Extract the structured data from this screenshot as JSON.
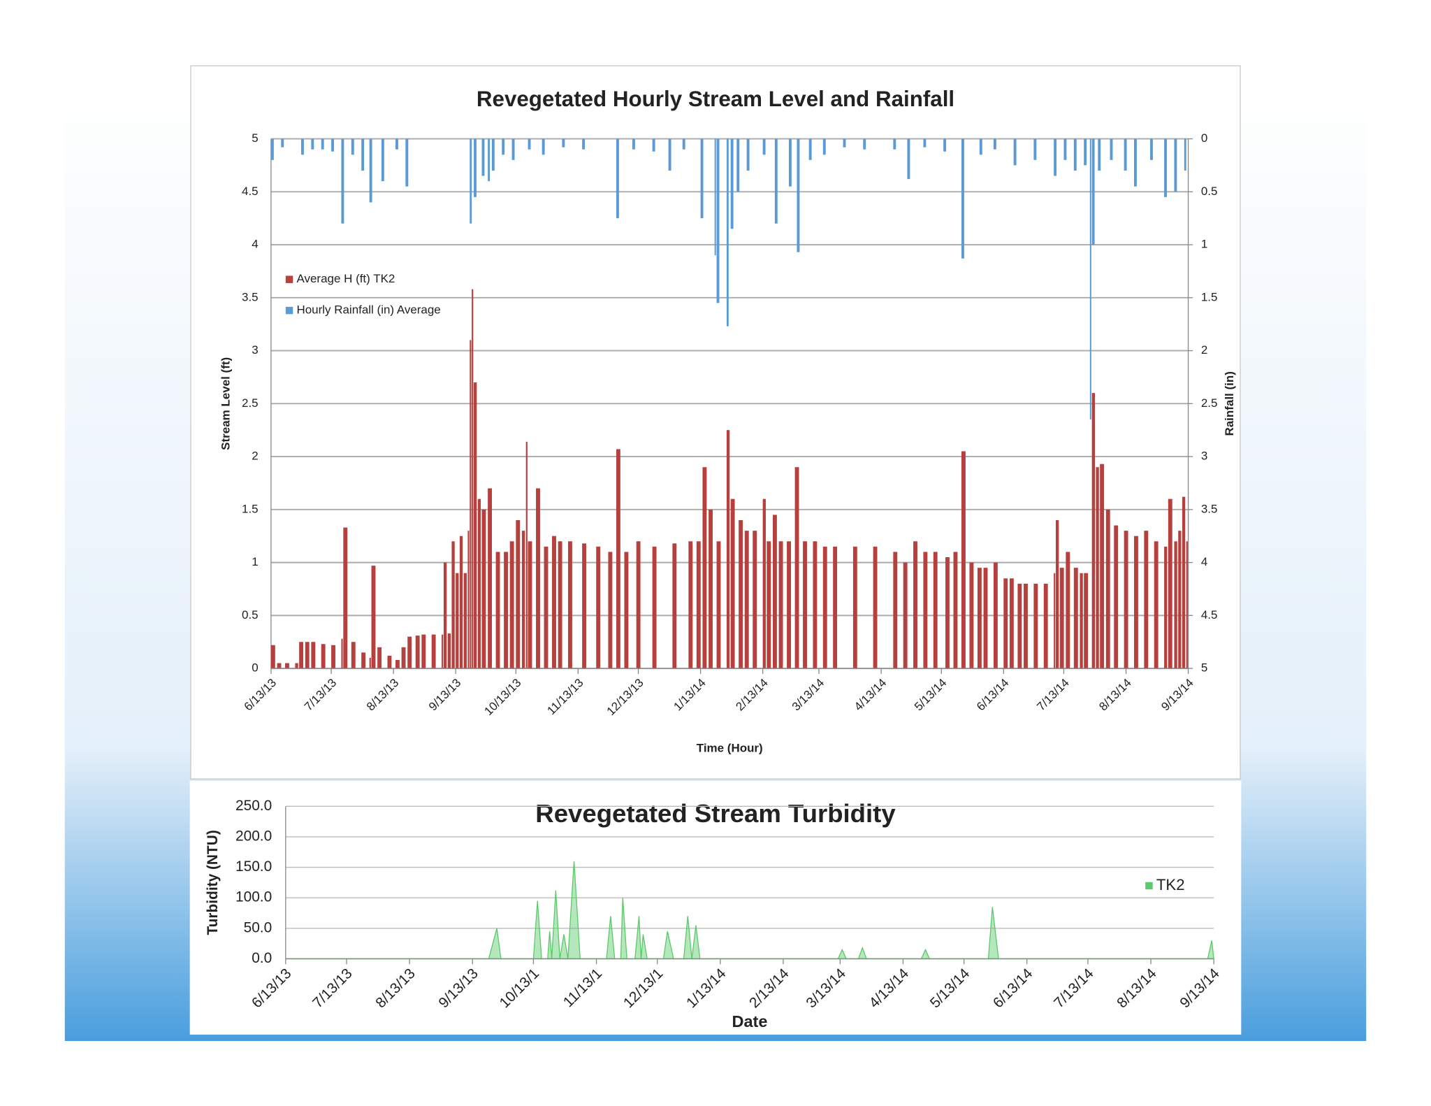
{
  "chart_data": [
    {
      "type": "bar",
      "title": "Revegetated Hourly Stream Level and Rainfall",
      "y_label": "Stream Level (ft)",
      "y2_label": "Rainfall (in)",
      "x_label": "Time (Hour)",
      "xlim": [
        0,
        457
      ],
      "xticks": [
        {
          "value": 0,
          "label": "6/13/13"
        },
        {
          "value": 30,
          "label": "7/13/13"
        },
        {
          "value": 61,
          "label": "8/13/13"
        },
        {
          "value": 92,
          "label": "9/13/13"
        },
        {
          "value": 122,
          "label": "10/13/13"
        },
        {
          "value": 153,
          "label": "11/13/13"
        },
        {
          "value": 183,
          "label": "12/13/13"
        },
        {
          "value": 214,
          "label": "1/13/14"
        },
        {
          "value": 245,
          "label": "2/13/14"
        },
        {
          "value": 273,
          "label": "3/13/14"
        },
        {
          "value": 304,
          "label": "4/13/14"
        },
        {
          "value": 334,
          "label": "5/13/14"
        },
        {
          "value": 365,
          "label": "6/13/14"
        },
        {
          "value": 395,
          "label": "7/13/14"
        },
        {
          "value": 426,
          "label": "8/13/14"
        },
        {
          "value": 457,
          "label": "9/13/14"
        }
      ],
      "ylim": [
        0,
        5
      ],
      "yticks": [
        0,
        0.5,
        1,
        1.5,
        2,
        2.5,
        3,
        3.5,
        4,
        4.5,
        5
      ],
      "y2lim": [
        5,
        0
      ],
      "y2ticks": [
        0,
        0.5,
        1,
        1.5,
        2,
        2.5,
        3,
        3.5,
        4,
        4.5,
        5
      ],
      "grid": true,
      "legend": "upper left",
      "series": [
        {
          "name": "Average H (ft) TK2",
          "color": "#b5403d",
          "x": [
            0,
            3,
            7,
            12,
            14,
            17,
            20,
            25,
            30,
            35,
            36,
            40,
            45,
            49,
            50,
            53,
            58,
            62,
            65,
            68,
            72,
            75,
            80,
            85,
            86,
            88,
            90,
            92,
            94,
            96,
            98,
            99,
            100,
            101,
            103,
            105,
            108,
            112,
            116,
            119,
            122,
            125,
            127,
            128,
            132,
            136,
            140,
            143,
            148,
            155,
            162,
            168,
            172,
            176,
            182,
            190,
            200,
            208,
            212,
            215,
            218,
            222,
            227,
            229,
            233,
            236,
            240,
            245,
            247,
            250,
            253,
            257,
            261,
            265,
            270,
            275,
            280,
            290,
            300,
            310,
            315,
            320,
            325,
            330,
            336,
            340,
            344,
            348,
            352,
            355,
            360,
            365,
            368,
            372,
            375,
            380,
            385,
            390,
            391,
            393,
            396,
            400,
            403,
            405,
            409,
            411,
            413,
            416,
            420,
            425,
            430,
            435,
            440,
            445,
            447,
            450,
            452,
            454,
            456
          ],
          "values": [
            0.22,
            0.05,
            0.05,
            0.05,
            0.25,
            0.25,
            0.25,
            0.23,
            0.22,
            0.28,
            1.33,
            0.25,
            0.15,
            0.1,
            0.97,
            0.2,
            0.12,
            0.08,
            0.2,
            0.3,
            0.31,
            0.32,
            0.32,
            0.32,
            1.0,
            0.33,
            1.2,
            0.9,
            1.25,
            0.9,
            1.3,
            3.1,
            3.58,
            2.7,
            1.6,
            1.5,
            1.7,
            1.1,
            1.1,
            1.2,
            1.4,
            1.3,
            2.14,
            1.2,
            1.7,
            1.15,
            1.25,
            1.2,
            1.2,
            1.18,
            1.15,
            1.1,
            2.07,
            1.1,
            1.2,
            1.15,
            1.18,
            1.2,
            1.2,
            1.9,
            1.5,
            1.2,
            2.25,
            1.6,
            1.4,
            1.3,
            1.3,
            1.6,
            1.2,
            1.45,
            1.2,
            1.2,
            1.9,
            1.2,
            1.2,
            1.15,
            1.15,
            1.15,
            1.15,
            1.1,
            1.0,
            1.2,
            1.1,
            1.1,
            1.05,
            1.1,
            2.05,
            1.0,
            0.95,
            0.95,
            1.0,
            0.85,
            0.85,
            0.8,
            0.8,
            0.8,
            0.8,
            0.9,
            1.4,
            0.95,
            1.1,
            0.95,
            0.9,
            0.9,
            2.6,
            1.9,
            1.93,
            1.5,
            1.35,
            1.3,
            1.25,
            1.3,
            1.2,
            1.15,
            1.6,
            1.2,
            1.3,
            1.62,
            1.2
          ]
        },
        {
          "name": "Hourly Rainfall (in) Average",
          "color": "#5b9bd5",
          "axis": "y2",
          "x": [
            0,
            5,
            15,
            20,
            25,
            30,
            35,
            40,
            45,
            49,
            55,
            62,
            67,
            99,
            101,
            105,
            108,
            110,
            115,
            120,
            128,
            135,
            145,
            155,
            172,
            180,
            190,
            198,
            205,
            214,
            221,
            222,
            227,
            229,
            232,
            237,
            245,
            251,
            258,
            262,
            268,
            275,
            285,
            295,
            310,
            317,
            325,
            335,
            344,
            353,
            360,
            370,
            380,
            390,
            395,
            400,
            405,
            408,
            409,
            412,
            418,
            425,
            430,
            438,
            445,
            450,
            455
          ],
          "values": [
            0.2,
            0.08,
            0.15,
            0.1,
            0.1,
            0.12,
            0.8,
            0.15,
            0.3,
            0.6,
            0.4,
            0.1,
            0.45,
            0.8,
            0.55,
            0.35,
            0.4,
            0.3,
            0.15,
            0.2,
            0.1,
            0.15,
            0.08,
            0.1,
            0.75,
            0.1,
            0.12,
            0.3,
            0.1,
            0.75,
            1.1,
            1.55,
            1.77,
            0.85,
            0.5,
            0.3,
            0.15,
            0.8,
            0.45,
            1.07,
            0.2,
            0.15,
            0.08,
            0.1,
            0.1,
            0.38,
            0.08,
            0.12,
            1.13,
            0.15,
            0.1,
            0.25,
            0.2,
            0.35,
            0.2,
            0.3,
            0.25,
            2.65,
            1.0,
            0.3,
            0.2,
            0.3,
            0.45,
            0.2,
            0.55,
            0.5,
            0.3
          ]
        }
      ]
    },
    {
      "type": "area",
      "title": "Revegetated Stream Turbidity",
      "y_label": "Turbidity (NTU)",
      "x_label": "Date",
      "xlim": [
        0,
        457
      ],
      "xticks": [
        {
          "value": 0,
          "label": "6/13/13"
        },
        {
          "value": 30,
          "label": "7/13/13"
        },
        {
          "value": 61,
          "label": "8/13/13"
        },
        {
          "value": 92,
          "label": "9/13/13"
        },
        {
          "value": 122,
          "label": "10/13/1"
        },
        {
          "value": 153,
          "label": "11/13/1"
        },
        {
          "value": 183,
          "label": "12/13/1"
        },
        {
          "value": 214,
          "label": "1/13/14"
        },
        {
          "value": 245,
          "label": "2/13/14"
        },
        {
          "value": 273,
          "label": "3/13/14"
        },
        {
          "value": 304,
          "label": "4/13/14"
        },
        {
          "value": 334,
          "label": "5/13/14"
        },
        {
          "value": 365,
          "label": "6/13/14"
        },
        {
          "value": 395,
          "label": "7/13/14"
        },
        {
          "value": 426,
          "label": "8/13/14"
        },
        {
          "value": 457,
          "label": "9/13/14"
        }
      ],
      "ylim": [
        0,
        250
      ],
      "yticks": [
        {
          "value": 0,
          "label": "0.0"
        },
        {
          "value": 50,
          "label": "50.0"
        },
        {
          "value": 100,
          "label": "100.0"
        },
        {
          "value": 150,
          "label": "150.0"
        },
        {
          "value": 200,
          "label": "200.0"
        },
        {
          "value": 250,
          "label": "250.0"
        }
      ],
      "grid": true,
      "legend": "right",
      "series": [
        {
          "name": "TK2",
          "color": "#5cc96a",
          "x": [
            0,
            100,
            104,
            106,
            122,
            124,
            126,
            129,
            130,
            131,
            133,
            135,
            137,
            139,
            142,
            145,
            158,
            160,
            162,
            165,
            166,
            168,
            172,
            174,
            175,
            176,
            178,
            186,
            188,
            191,
            196,
            198,
            200,
            202,
            204,
            272,
            274,
            276,
            282,
            284,
            286,
            313,
            315,
            317,
            346,
            348,
            351,
            454,
            456,
            457
          ],
          "values": [
            0,
            0,
            50,
            0,
            0,
            95,
            0,
            0,
            45,
            0,
            112,
            0,
            40,
            0,
            160,
            0,
            0,
            70,
            0,
            0,
            100,
            0,
            0,
            70,
            0,
            40,
            0,
            0,
            45,
            0,
            0,
            70,
            0,
            55,
            0,
            0,
            15,
            0,
            0,
            18,
            0,
            0,
            15,
            0,
            0,
            85,
            0,
            0,
            30,
            0
          ]
        }
      ]
    }
  ]
}
